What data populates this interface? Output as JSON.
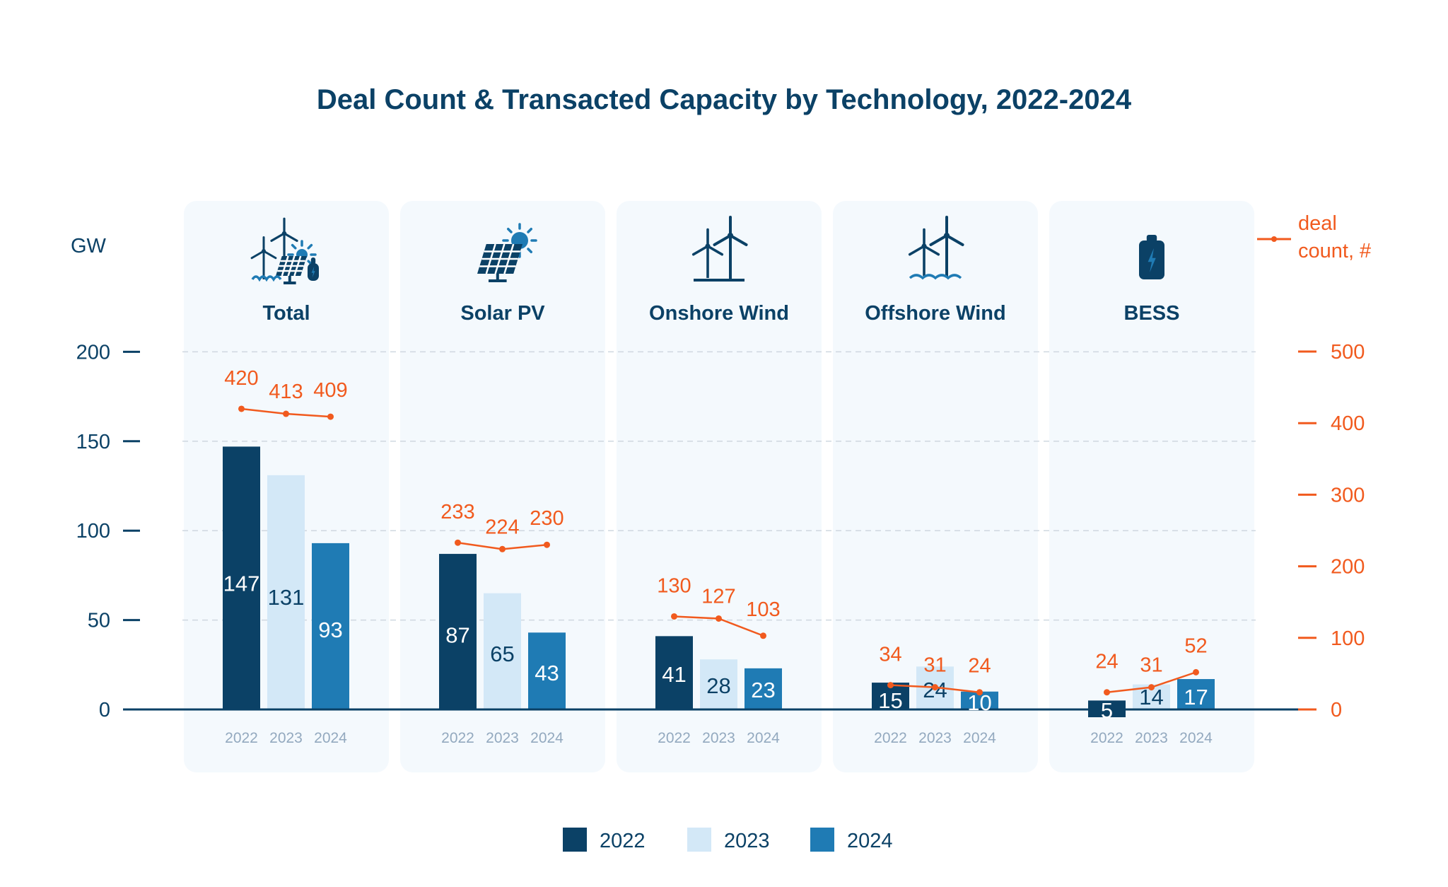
{
  "chart_data": {
    "type": "bar",
    "title": "Deal Count & Transacted Capacity by Technology, 2022-2024",
    "ylabel_left": "GW",
    "ylabel_right": [
      "deal",
      "count, #"
    ],
    "yticks_left": [
      "200",
      "150",
      "100",
      "50",
      "0"
    ],
    "ylim_left": [
      0,
      200
    ],
    "yticks_right": [
      "500",
      "400",
      "300",
      "200",
      "100",
      "0"
    ],
    "ylim_right": [
      0,
      500
    ],
    "grid": true,
    "legend_placement": "bottom-center",
    "legend": [
      "2022",
      "2023",
      "2024"
    ],
    "years": [
      "2022",
      "2023",
      "2024"
    ],
    "colors": {
      "2022": "#0b4166",
      "2023": "#d3e8f7",
      "2024": "#1f7bb4",
      "deal_line": "#f15a1e",
      "panel_bg": "#f4f9fd",
      "axis": "#0b4166"
    },
    "categories": [
      {
        "name": "Total",
        "icon": "renewables-mix-icon",
        "gw": [
          147,
          131,
          93
        ],
        "gw_labels": [
          "147",
          "131",
          "93"
        ],
        "deals": [
          420,
          413,
          409
        ],
        "deal_labels": [
          "420",
          "413",
          "409"
        ]
      },
      {
        "name": "Solar PV",
        "icon": "solar-panel-icon",
        "gw": [
          87,
          65,
          43
        ],
        "gw_labels": [
          "87",
          "65",
          "43"
        ],
        "deals": [
          233,
          224,
          230
        ],
        "deal_labels": [
          "233",
          "224",
          "230"
        ]
      },
      {
        "name": "Onshore Wind",
        "icon": "wind-turbine-icon",
        "gw": [
          41,
          28,
          23
        ],
        "gw_labels": [
          "41",
          "28",
          "23"
        ],
        "deals": [
          130,
          127,
          103
        ],
        "deal_labels": [
          "130",
          "127",
          "103"
        ]
      },
      {
        "name": "Offshore Wind",
        "icon": "offshore-wind-turbine-icon",
        "gw": [
          15,
          24,
          10
        ],
        "gw_labels": [
          "15",
          "24",
          "10"
        ],
        "deals": [
          34,
          31,
          24
        ],
        "deal_labels": [
          "34",
          "31",
          "24"
        ]
      },
      {
        "name": "BESS",
        "icon": "battery-icon",
        "gw": [
          5,
          14,
          17
        ],
        "gw_labels": [
          "5",
          "14",
          "17"
        ],
        "deals": [
          24,
          31,
          52
        ],
        "deal_labels": [
          "24",
          "31",
          "52"
        ]
      }
    ]
  }
}
